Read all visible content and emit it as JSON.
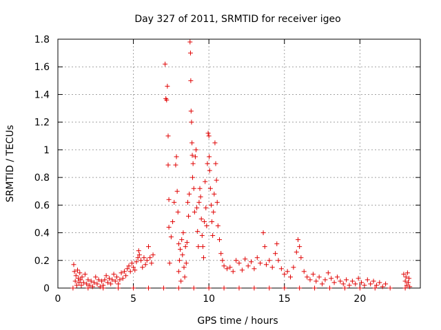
{
  "chart_data": {
    "type": "scatter",
    "title": "Day 327 of 2011, SRMTID for receiver igeo",
    "xlabel": "GPS time / hours",
    "ylabel": "SRMTID / TECUs",
    "xlim": [
      0,
      24
    ],
    "ylim": [
      0,
      1.8
    ],
    "xticks": [
      0,
      5,
      10,
      15,
      20
    ],
    "xtick_labels": [
      "0",
      "5",
      "10",
      "15",
      "20"
    ],
    "yticks": [
      0,
      0.2,
      0.4,
      0.6,
      0.8,
      1.0,
      1.2,
      1.4,
      1.6,
      1.8
    ],
    "ytick_labels": [
      "0",
      "0.2",
      "0.4",
      "0.6",
      "0.8",
      "1",
      "1.2",
      "1.4",
      "1.6",
      "1.8"
    ],
    "grid": true,
    "marker": "plus",
    "color": "#e00000",
    "series": [
      {
        "name": "SRMTID",
        "points": [
          [
            1.05,
            0.17
          ],
          [
            1.1,
            0.12
          ],
          [
            1.15,
            0.05
          ],
          [
            1.2,
            0.09
          ],
          [
            1.25,
            0.02
          ],
          [
            1.3,
            0.13
          ],
          [
            1.35,
            0.07
          ],
          [
            1.4,
            0.04
          ],
          [
            1.45,
            0.11
          ],
          [
            1.5,
            0.06
          ],
          [
            1.55,
            0.02
          ],
          [
            1.6,
            0.08
          ],
          [
            1.7,
            0.04
          ],
          [
            1.8,
            0.1
          ],
          [
            1.9,
            0.03
          ],
          [
            2.0,
            0.06
          ],
          [
            2.1,
            0.02
          ],
          [
            2.2,
            0.05
          ],
          [
            2.3,
            0.01
          ],
          [
            2.4,
            0.04
          ],
          [
            2.5,
            0.08
          ],
          [
            2.6,
            0.03
          ],
          [
            2.7,
            0.06
          ],
          [
            2.8,
            0.01
          ],
          [
            2.9,
            0.05
          ],
          [
            3.0,
            0.02
          ],
          [
            3.1,
            0.06
          ],
          [
            3.2,
            0.09
          ],
          [
            3.3,
            0.04
          ],
          [
            3.4,
            0.07
          ],
          [
            3.5,
            0.03
          ],
          [
            3.6,
            0.06
          ],
          [
            3.7,
            0.1
          ],
          [
            3.8,
            0.05
          ],
          [
            3.9,
            0.08
          ],
          [
            4.0,
            0.03
          ],
          [
            4.1,
            0.06
          ],
          [
            4.2,
            0.11
          ],
          [
            4.3,
            0.07
          ],
          [
            4.4,
            0.12
          ],
          [
            4.5,
            0.09
          ],
          [
            4.6,
            0.14
          ],
          [
            4.7,
            0.16
          ],
          [
            4.8,
            0.12
          ],
          [
            4.9,
            0.18
          ],
          [
            5.0,
            0.15
          ],
          [
            5.1,
            0.13
          ],
          [
            5.2,
            0.19
          ],
          [
            5.3,
            0.22
          ],
          [
            5.35,
            0.27
          ],
          [
            5.4,
            0.24
          ],
          [
            5.5,
            0.2
          ],
          [
            5.6,
            0.15
          ],
          [
            5.7,
            0.22
          ],
          [
            5.8,
            0.17
          ],
          [
            5.9,
            0.2
          ],
          [
            6.0,
            0.3
          ],
          [
            6.1,
            0.22
          ],
          [
            6.2,
            0.18
          ],
          [
            6.3,
            0.24
          ],
          [
            7.1,
            1.62
          ],
          [
            7.15,
            1.37
          ],
          [
            7.2,
            1.36
          ],
          [
            7.25,
            1.46
          ],
          [
            7.3,
            1.1
          ],
          [
            7.3,
            0.89
          ],
          [
            7.35,
            0.64
          ],
          [
            7.35,
            0.44
          ],
          [
            7.4,
            0.18
          ],
          [
            7.5,
            0.37
          ],
          [
            7.6,
            0.48
          ],
          [
            7.7,
            0.62
          ],
          [
            7.8,
            0.89
          ],
          [
            7.85,
            0.95
          ],
          [
            7.9,
            0.7
          ],
          [
            7.95,
            0.55
          ],
          [
            8.0,
            0.32
          ],
          [
            8.0,
            0.12
          ],
          [
            8.05,
            0.2
          ],
          [
            8.1,
            0.28
          ],
          [
            8.15,
            0.05
          ],
          [
            8.2,
            0.35
          ],
          [
            8.25,
            0.24
          ],
          [
            8.3,
            0.4
          ],
          [
            8.35,
            0.15
          ],
          [
            8.4,
            0.08
          ],
          [
            8.45,
            0.3
          ],
          [
            8.5,
            0.18
          ],
          [
            8.55,
            0.33
          ],
          [
            8.6,
            0.62
          ],
          [
            8.65,
            0.52
          ],
          [
            8.7,
            0.68
          ],
          [
            8.75,
            1.78
          ],
          [
            8.78,
            1.7
          ],
          [
            8.8,
            1.5
          ],
          [
            8.82,
            1.28
          ],
          [
            8.85,
            1.2
          ],
          [
            8.88,
            1.05
          ],
          [
            8.9,
            0.96
          ],
          [
            8.92,
            0.8
          ],
          [
            8.95,
            0.9
          ],
          [
            9.0,
            0.72
          ],
          [
            9.05,
            0.55
          ],
          [
            9.1,
            0.95
          ],
          [
            9.15,
            1.0
          ],
          [
            9.2,
            0.58
          ],
          [
            9.25,
            0.41
          ],
          [
            9.3,
            0.3
          ],
          [
            9.35,
            0.62
          ],
          [
            9.4,
            0.72
          ],
          [
            9.45,
            0.66
          ],
          [
            9.5,
            0.5
          ],
          [
            9.55,
            0.38
          ],
          [
            9.6,
            0.3
          ],
          [
            9.65,
            0.22
          ],
          [
            9.7,
            0.48
          ],
          [
            9.75,
            0.77
          ],
          [
            9.8,
            0.58
          ],
          [
            9.85,
            0.45
          ],
          [
            9.9,
            0.9
          ],
          [
            9.95,
            1.12
          ],
          [
            10.0,
            1.1
          ],
          [
            10.02,
            0.95
          ],
          [
            10.05,
            0.85
          ],
          [
            10.1,
            0.72
          ],
          [
            10.15,
            0.6
          ],
          [
            10.2,
            0.48
          ],
          [
            10.25,
            0.38
          ],
          [
            10.3,
            0.55
          ],
          [
            10.35,
            0.68
          ],
          [
            10.4,
            1.05
          ],
          [
            10.45,
            0.9
          ],
          [
            10.5,
            0.78
          ],
          [
            10.55,
            0.62
          ],
          [
            10.6,
            0.45
          ],
          [
            10.7,
            0.35
          ],
          [
            10.8,
            0.25
          ],
          [
            10.9,
            0.2
          ],
          [
            11.0,
            0.16
          ],
          [
            11.2,
            0.14
          ],
          [
            11.4,
            0.15
          ],
          [
            11.6,
            0.12
          ],
          [
            11.8,
            0.2
          ],
          [
            12.0,
            0.18
          ],
          [
            12.2,
            0.13
          ],
          [
            12.4,
            0.21
          ],
          [
            12.6,
            0.16
          ],
          [
            12.8,
            0.19
          ],
          [
            13.0,
            0.14
          ],
          [
            13.2,
            0.22
          ],
          [
            13.4,
            0.18
          ],
          [
            13.6,
            0.4
          ],
          [
            13.7,
            0.3
          ],
          [
            13.8,
            0.17
          ],
          [
            14.0,
            0.2
          ],
          [
            14.2,
            0.15
          ],
          [
            14.4,
            0.25
          ],
          [
            14.5,
            0.32
          ],
          [
            14.6,
            0.2
          ],
          [
            14.8,
            0.14
          ],
          [
            15.0,
            0.1
          ],
          [
            15.2,
            0.12
          ],
          [
            15.4,
            0.08
          ],
          [
            15.6,
            0.15
          ],
          [
            15.8,
            0.26
          ],
          [
            15.9,
            0.35
          ],
          [
            16.0,
            0.3
          ],
          [
            16.1,
            0.22
          ],
          [
            16.3,
            0.12
          ],
          [
            16.5,
            0.08
          ],
          [
            16.7,
            0.06
          ],
          [
            16.9,
            0.1
          ],
          [
            17.1,
            0.05
          ],
          [
            17.3,
            0.08
          ],
          [
            17.5,
            0.03
          ],
          [
            17.7,
            0.06
          ],
          [
            17.9,
            0.11
          ],
          [
            18.1,
            0.07
          ],
          [
            18.3,
            0.04
          ],
          [
            18.5,
            0.08
          ],
          [
            18.7,
            0.05
          ],
          [
            18.9,
            0.03
          ],
          [
            19.1,
            0.06
          ],
          [
            19.3,
            0.02
          ],
          [
            19.5,
            0.05
          ],
          [
            19.7,
            0.03
          ],
          [
            19.9,
            0.07
          ],
          [
            20.1,
            0.04
          ],
          [
            20.3,
            0.02
          ],
          [
            20.5,
            0.06
          ],
          [
            20.7,
            0.03
          ],
          [
            20.9,
            0.05
          ],
          [
            21.1,
            0.02
          ],
          [
            21.3,
            0.04
          ],
          [
            21.5,
            0.01
          ],
          [
            21.7,
            0.03
          ],
          [
            22.9,
            0.1
          ],
          [
            23.0,
            0.05
          ],
          [
            23.05,
            0.08
          ],
          [
            23.1,
            0.02
          ],
          [
            23.15,
            0.11
          ],
          [
            23.2,
            0.04
          ],
          [
            23.25,
            0.07
          ],
          [
            23.3,
            0.01
          ],
          [
            1.0,
            0.0
          ],
          [
            2.0,
            0.0
          ],
          [
            3.0,
            0.0
          ],
          [
            4.0,
            0.0
          ],
          [
            5.0,
            0.0
          ],
          [
            6.0,
            0.0
          ],
          [
            7.0,
            0.0
          ],
          [
            8.0,
            0.0
          ],
          [
            9.0,
            0.0
          ],
          [
            10.0,
            0.0
          ],
          [
            11.0,
            0.0
          ],
          [
            12.0,
            0.0
          ],
          [
            13.0,
            0.0
          ],
          [
            14.0,
            0.0
          ],
          [
            15.0,
            0.0
          ],
          [
            16.0,
            0.0
          ],
          [
            17.0,
            0.0
          ],
          [
            18.0,
            0.0
          ],
          [
            19.0,
            0.0
          ],
          [
            20.0,
            0.0
          ],
          [
            21.0,
            0.0
          ],
          [
            22.0,
            0.0
          ],
          [
            23.0,
            0.0
          ]
        ]
      }
    ]
  }
}
